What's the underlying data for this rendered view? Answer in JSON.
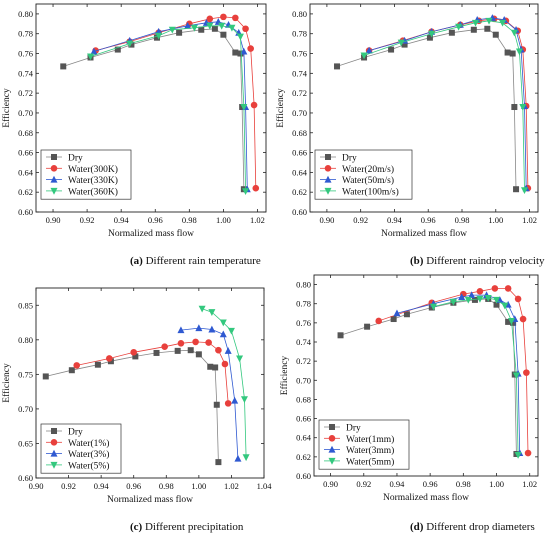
{
  "chart_data": [
    {
      "type": "line",
      "caption_label": "(a)",
      "caption_text": " Different rain temperature",
      "xlabel": "Normalized mass flow",
      "ylabel": "Efficiency",
      "xlim": [
        0.89,
        1.025
      ],
      "ylim": [
        0.6,
        0.81
      ],
      "xticks": [
        0.9,
        0.92,
        0.94,
        0.96,
        0.98,
        1.0,
        1.02
      ],
      "yticks": [
        0.6,
        0.62,
        0.64,
        0.66,
        0.68,
        0.7,
        0.72,
        0.74,
        0.76,
        0.78,
        0.8
      ],
      "legend_position": "bottom-left",
      "series": [
        {
          "name": "Dry",
          "color": "#555555",
          "marker": "square",
          "x": [
            0.906,
            0.922,
            0.938,
            0.946,
            0.961,
            0.974,
            0.987,
            0.995,
            1.0,
            1.007,
            1.01,
            1.011,
            1.012
          ],
          "y": [
            0.747,
            0.756,
            0.764,
            0.769,
            0.776,
            0.781,
            0.784,
            0.785,
            0.779,
            0.761,
            0.76,
            0.706,
            0.623
          ]
        },
        {
          "name": "Water(300K)",
          "color": "#e8403c",
          "marker": "circle",
          "x": [
            0.925,
            0.945,
            0.962,
            0.98,
            0.992,
            1.0,
            1.007,
            1.013,
            1.016,
            1.018,
            1.019
          ],
          "y": [
            0.763,
            0.772,
            0.781,
            0.79,
            0.795,
            0.797,
            0.796,
            0.785,
            0.765,
            0.708,
            0.624
          ]
        },
        {
          "name": "Water(330K)",
          "color": "#2f59d1",
          "marker": "triangle-up",
          "x": [
            0.924,
            0.945,
            0.962,
            0.979,
            0.99,
            0.997,
            1.003,
            1.009,
            1.012,
            1.013,
            1.014
          ],
          "y": [
            0.762,
            0.773,
            0.782,
            0.788,
            0.791,
            0.792,
            0.789,
            0.781,
            0.762,
            0.706,
            0.623
          ]
        },
        {
          "name": "Water(360K)",
          "color": "#33c87e",
          "marker": "triangle-down",
          "x": [
            0.922,
            0.945,
            0.962,
            0.97,
            0.983,
            0.992,
            0.999,
            1.005,
            1.01,
            1.012,
            1.013
          ],
          "y": [
            0.757,
            0.77,
            0.778,
            0.784,
            0.786,
            0.788,
            0.788,
            0.786,
            0.777,
            0.706,
            0.621
          ]
        }
      ]
    },
    {
      "type": "line",
      "caption_label": "(b)",
      "caption_text": " Different raindrop velocity",
      "xlabel": "Normalized mass flow",
      "ylabel": "Efficiency",
      "xlim": [
        0.89,
        1.025
      ],
      "ylim": [
        0.6,
        0.81
      ],
      "xticks": [
        0.9,
        0.92,
        0.94,
        0.96,
        0.98,
        1.0,
        1.02
      ],
      "yticks": [
        0.6,
        0.62,
        0.64,
        0.66,
        0.68,
        0.7,
        0.72,
        0.74,
        0.76,
        0.78,
        0.8
      ],
      "legend_position": "bottom-left",
      "series": [
        {
          "name": "Dry",
          "color": "#555555",
          "marker": "square",
          "x": [
            0.906,
            0.922,
            0.938,
            0.946,
            0.961,
            0.974,
            0.987,
            0.995,
            1.0,
            1.007,
            1.01,
            1.011,
            1.012
          ],
          "y": [
            0.747,
            0.756,
            0.764,
            0.769,
            0.776,
            0.781,
            0.784,
            0.785,
            0.779,
            0.761,
            0.76,
            0.706,
            0.623
          ]
        },
        {
          "name": "Water(20m/s)",
          "color": "#e8403c",
          "marker": "circle",
          "x": [
            0.925,
            0.945,
            0.962,
            0.979,
            0.99,
            0.999,
            1.006,
            1.013,
            1.016,
            1.018,
            1.019
          ],
          "y": [
            0.763,
            0.773,
            0.782,
            0.789,
            0.793,
            0.795,
            0.793,
            0.783,
            0.764,
            0.707,
            0.624
          ]
        },
        {
          "name": "Water(50m/s)",
          "color": "#2f59d1",
          "marker": "triangle-up",
          "x": [
            0.925,
            0.946,
            0.962,
            0.979,
            0.989,
            0.998,
            1.005,
            1.012,
            1.015,
            1.017,
            1.018
          ],
          "y": [
            0.763,
            0.773,
            0.782,
            0.789,
            0.794,
            0.796,
            0.794,
            0.784,
            0.764,
            0.707,
            0.624
          ]
        },
        {
          "name": "Water(100m/s)",
          "color": "#33c87e",
          "marker": "triangle-down",
          "x": [
            0.922,
            0.944,
            0.962,
            0.978,
            0.988,
            0.996,
            1.004,
            1.011,
            1.014,
            1.016,
            1.017
          ],
          "y": [
            0.758,
            0.771,
            0.78,
            0.787,
            0.791,
            0.793,
            0.791,
            0.781,
            0.762,
            0.706,
            0.622
          ]
        }
      ]
    },
    {
      "type": "line",
      "caption_label": "(c)",
      "caption_text": " Different precipitation",
      "xlabel": "Normalized mass flow",
      "ylabel": "Efficiency",
      "xlim": [
        0.9,
        1.04
      ],
      "ylim": [
        0.6,
        0.875
      ],
      "xticks": [
        0.9,
        0.92,
        0.94,
        0.96,
        0.98,
        1.0,
        1.02,
        1.04
      ],
      "yticks": [
        0.6,
        0.65,
        0.7,
        0.75,
        0.8,
        0.85
      ],
      "legend_position": "bottom-left",
      "series": [
        {
          "name": "Dry",
          "color": "#555555",
          "marker": "square",
          "x": [
            0.906,
            0.922,
            0.938,
            0.946,
            0.961,
            0.974,
            0.987,
            0.995,
            1.0,
            1.007,
            1.01,
            1.011,
            1.012
          ],
          "y": [
            0.747,
            0.756,
            0.764,
            0.769,
            0.776,
            0.781,
            0.784,
            0.785,
            0.779,
            0.761,
            0.76,
            0.706,
            0.623
          ]
        },
        {
          "name": "Water(1%)",
          "color": "#e8403c",
          "marker": "circle",
          "x": [
            0.925,
            0.945,
            0.96,
            0.979,
            0.989,
            0.998,
            1.006,
            1.012,
            1.016,
            1.018
          ],
          "y": [
            0.763,
            0.773,
            0.782,
            0.79,
            0.795,
            0.797,
            0.796,
            0.785,
            0.765,
            0.708
          ]
        },
        {
          "name": "Water(3%)",
          "color": "#2f59d1",
          "marker": "triangle-up",
          "x": [
            0.989,
            1.0,
            1.008,
            1.015,
            1.018,
            1.022,
            1.024
          ],
          "y": [
            0.814,
            0.817,
            0.815,
            0.808,
            0.784,
            0.712,
            0.628
          ]
        },
        {
          "name": "Water(5%)",
          "color": "#33c87e",
          "marker": "triangle-down",
          "x": [
            1.002,
            1.008,
            1.015,
            1.02,
            1.025,
            1.028,
            1.029
          ],
          "y": [
            0.845,
            0.84,
            0.825,
            0.813,
            0.773,
            0.714,
            0.63
          ]
        }
      ]
    },
    {
      "type": "line",
      "caption_label": "(d)",
      "caption_text": " Different drop diameters",
      "xlabel": "Normalized mass flow",
      "ylabel": "Efficiency",
      "xlim": [
        0.89,
        1.025
      ],
      "ylim": [
        0.6,
        0.81
      ],
      "xticks": [
        0.9,
        0.92,
        0.94,
        0.96,
        0.98,
        1.0,
        1.02
      ],
      "yticks": [
        0.6,
        0.62,
        0.64,
        0.66,
        0.68,
        0.7,
        0.72,
        0.74,
        0.76,
        0.78,
        0.8
      ],
      "legend_position": "bottom-left",
      "series": [
        {
          "name": "Dry",
          "color": "#555555",
          "marker": "square",
          "x": [
            0.906,
            0.922,
            0.938,
            0.946,
            0.961,
            0.974,
            0.987,
            0.995,
            1.0,
            1.007,
            1.01,
            1.011,
            1.012
          ],
          "y": [
            0.747,
            0.756,
            0.764,
            0.769,
            0.776,
            0.781,
            0.784,
            0.785,
            0.779,
            0.761,
            0.76,
            0.706,
            0.623
          ]
        },
        {
          "name": "Water(1mm)",
          "color": "#e8403c",
          "marker": "circle",
          "x": [
            0.929,
            0.961,
            0.98,
            0.99,
            0.999,
            1.007,
            1.013,
            1.016,
            1.018,
            1.019
          ],
          "y": [
            0.762,
            0.781,
            0.79,
            0.793,
            0.796,
            0.796,
            0.785,
            0.764,
            0.708,
            0.624
          ]
        },
        {
          "name": "Water(3mm)",
          "color": "#2f59d1",
          "marker": "triangle-up",
          "x": [
            0.94,
            0.962,
            0.979,
            0.985,
            0.994,
            1.002,
            1.007,
            1.011,
            1.013,
            1.014
          ],
          "y": [
            0.77,
            0.78,
            0.787,
            0.789,
            0.789,
            0.784,
            0.779,
            0.764,
            0.707,
            0.624
          ]
        },
        {
          "name": "Water(5mm)",
          "color": "#33c87e",
          "marker": "triangle-down",
          "x": [
            0.962,
            0.974,
            0.983,
            0.99,
            0.995,
            1.0,
            1.005,
            1.009,
            1.012,
            1.013
          ],
          "y": [
            0.777,
            0.782,
            0.784,
            0.785,
            0.786,
            0.784,
            0.778,
            0.762,
            0.705,
            0.622
          ]
        }
      ]
    }
  ]
}
